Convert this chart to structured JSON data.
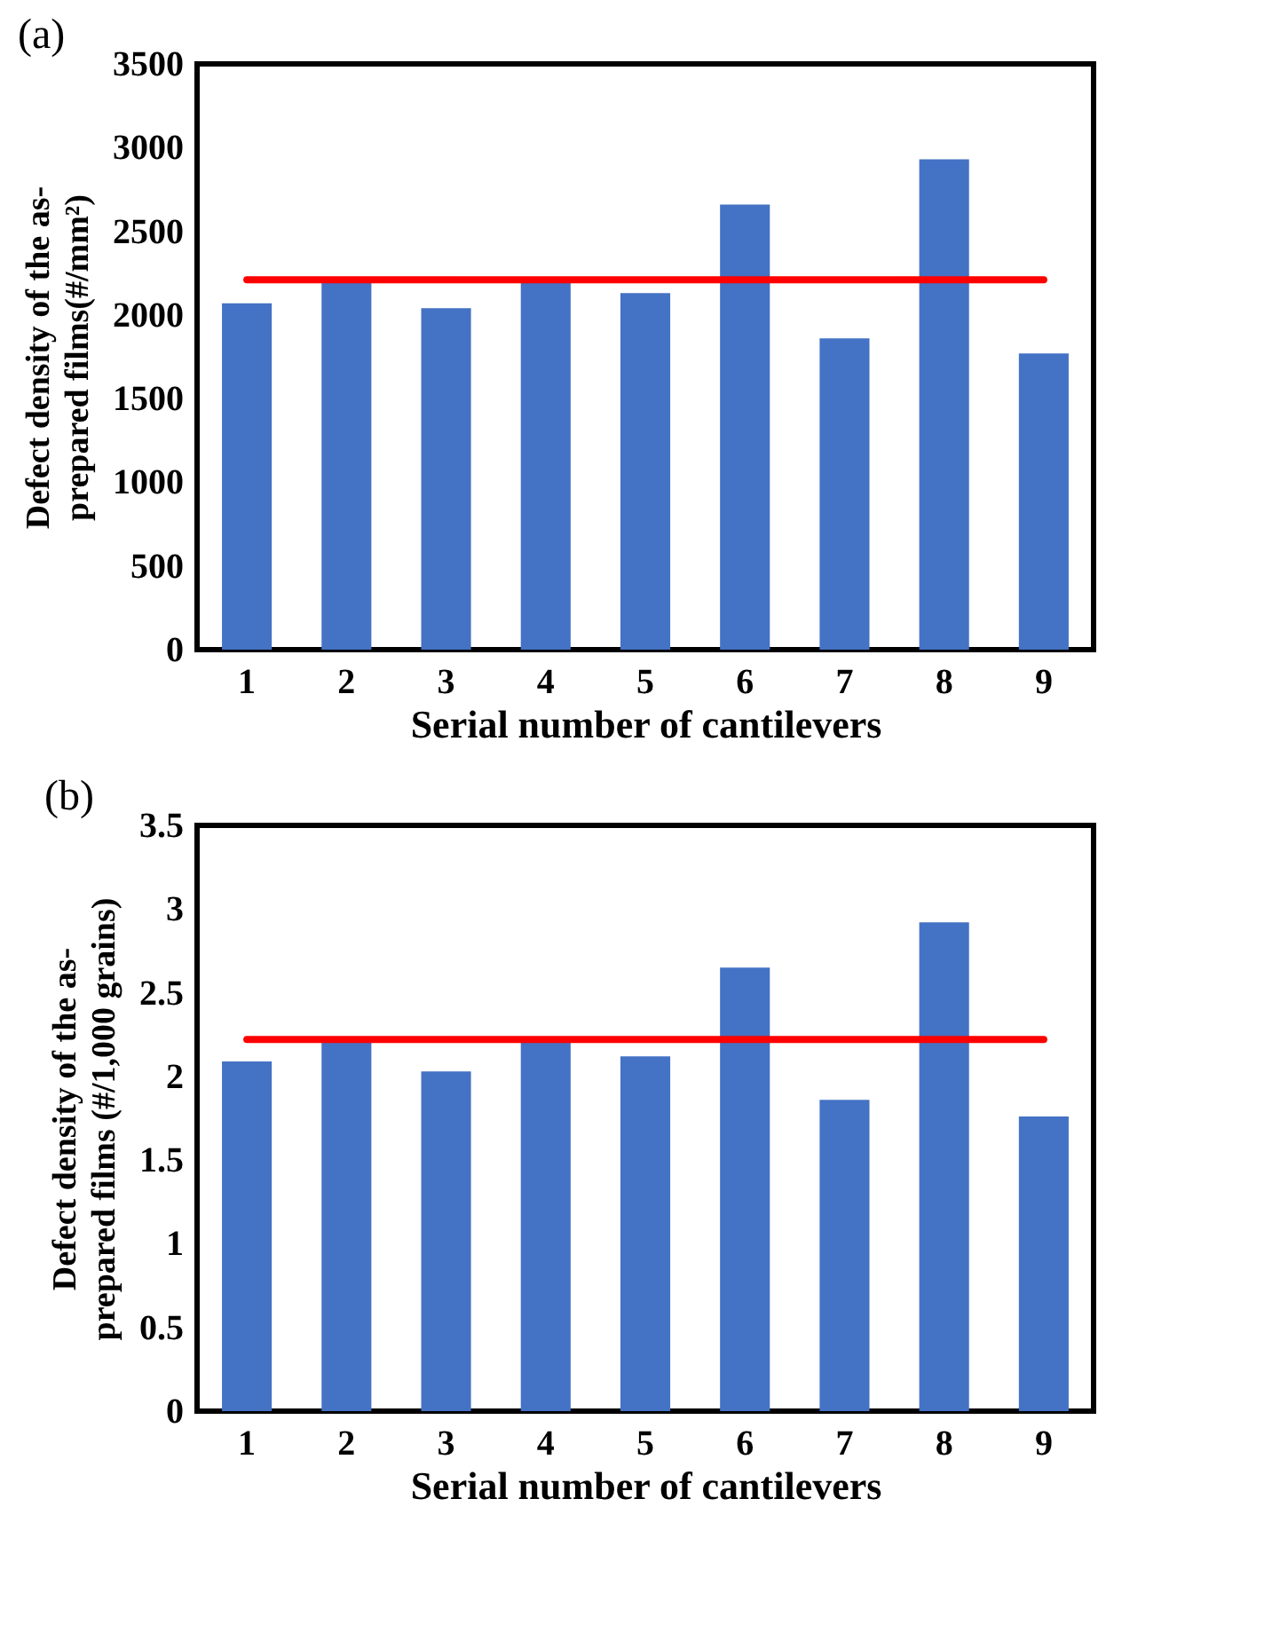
{
  "chart_data": [
    {
      "type": "bar",
      "annotations": [
        "(a)"
      ],
      "xlabel": "Serial number of cantilevers",
      "ylabel": "Defect density of the as-prepared films(#/mm²)",
      "categories": [
        "1",
        "2",
        "3",
        "4",
        "5",
        "6",
        "7",
        "8",
        "9"
      ],
      "series": [
        {
          "color": "#4472c4",
          "values": [
            2070,
            2200,
            2040,
            2200,
            2130,
            2660,
            1860,
            2930,
            1770
          ]
        },
        {
          "type": "line",
          "color": "#ff0000",
          "values": [
            2210,
            2210,
            2210,
            2210,
            2210,
            2210,
            2210,
            2210,
            2210
          ]
        }
      ],
      "ylim": [
        0,
        3500
      ],
      "yticks": [
        0,
        500,
        1000,
        1500,
        2000,
        2500,
        3000,
        3500
      ],
      "grid": false
    },
    {
      "type": "bar",
      "annotations": [
        "(b)"
      ],
      "xlabel": "Serial number of cantilevers",
      "ylabel": "Defect density of the as-prepared films (#/1,000 grains)",
      "categories": [
        "1",
        "2",
        "3",
        "4",
        "5",
        "6",
        "7",
        "8",
        "9"
      ],
      "series": [
        {
          "color": "#4472c4",
          "values": [
            2.09,
            2.21,
            2.03,
            2.21,
            2.12,
            2.65,
            1.86,
            2.92,
            1.76
          ]
        },
        {
          "type": "line",
          "color": "#ff0000",
          "values": [
            2.22,
            2.22,
            2.22,
            2.22,
            2.22,
            2.22,
            2.22,
            2.22,
            2.22
          ]
        }
      ],
      "ylim": [
        0,
        3.5
      ],
      "yticks": [
        0,
        0.5,
        1,
        1.5,
        2,
        2.5,
        3,
        3.5
      ],
      "grid": false
    }
  ]
}
